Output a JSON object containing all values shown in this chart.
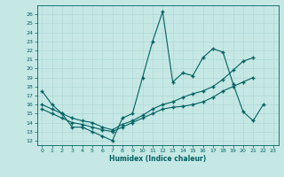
{
  "xlabel": "Humidex (Indice chaleur)",
  "background_color": "#c5e8e5",
  "line_color": "#006060",
  "grid_color": "#b0d8d5",
  "xlim": [
    -0.5,
    23.5
  ],
  "ylim": [
    11.5,
    27.0
  ],
  "yticks": [
    12,
    13,
    14,
    15,
    16,
    17,
    18,
    19,
    20,
    21,
    22,
    23,
    24,
    25,
    26
  ],
  "xticks": [
    0,
    1,
    2,
    3,
    4,
    5,
    6,
    7,
    8,
    9,
    10,
    11,
    12,
    13,
    14,
    15,
    16,
    17,
    18,
    19,
    20,
    21,
    22,
    23
  ],
  "line1_x": [
    0,
    1,
    2,
    3,
    4,
    5,
    6,
    7,
    8,
    9,
    10,
    11,
    12,
    13,
    14,
    15,
    16,
    17,
    18,
    19,
    20,
    21,
    22
  ],
  "line1_y": [
    17.5,
    16.0,
    15.0,
    13.5,
    13.5,
    13.0,
    12.5,
    12.0,
    14.5,
    15.0,
    19.0,
    23.0,
    26.3,
    18.5,
    19.5,
    19.2,
    21.2,
    22.2,
    21.8,
    18.3,
    15.2,
    14.2,
    16.0
  ],
  "line2_x": [
    0,
    1,
    2,
    3,
    4,
    5,
    6,
    7,
    8,
    9,
    10,
    11,
    12,
    13,
    14,
    15,
    16,
    17,
    18,
    19,
    20,
    21
  ],
  "line2_y": [
    16.0,
    15.5,
    15.0,
    14.5,
    14.2,
    14.0,
    13.5,
    13.2,
    13.8,
    14.2,
    14.8,
    15.5,
    16.0,
    16.3,
    16.8,
    17.2,
    17.5,
    18.0,
    18.8,
    19.8,
    20.8,
    21.2
  ],
  "line3_x": [
    0,
    1,
    2,
    3,
    4,
    5,
    6,
    7,
    8,
    9,
    10,
    11,
    12,
    13,
    14,
    15,
    16,
    17,
    18,
    19,
    20,
    21
  ],
  "line3_y": [
    15.5,
    15.0,
    14.5,
    14.0,
    13.8,
    13.5,
    13.2,
    13.0,
    13.5,
    14.0,
    14.5,
    15.0,
    15.5,
    15.7,
    15.8,
    16.0,
    16.3,
    16.8,
    17.5,
    18.0,
    18.5,
    19.0
  ],
  "tick_fontsize": 4.5,
  "xlabel_fontsize": 5.5,
  "marker": "+",
  "markersize": 3.5,
  "linewidth": 0.8
}
